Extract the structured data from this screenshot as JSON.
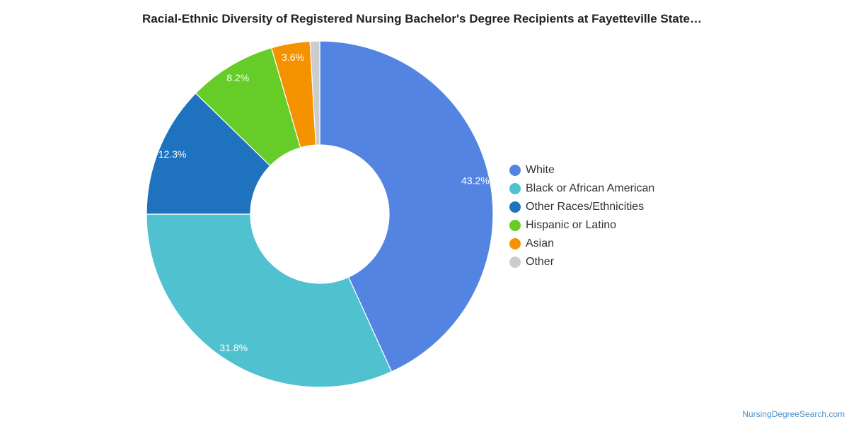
{
  "title": "Racial-Ethnic Diversity of Registered Nursing Bachelor's Degree Recipients at Fayetteville State…",
  "credit": "NursingDegreeSearch.com",
  "chart_data": {
    "type": "pie",
    "variant": "donut",
    "legend_position": "right",
    "series": [
      {
        "name": "White",
        "value": 43.2,
        "label": "43.2%",
        "color": "#5384e2"
      },
      {
        "name": "Black or African American",
        "value": 31.8,
        "label": "31.8%",
        "color": "#4fc1cf"
      },
      {
        "name": "Other Races/Ethnicities",
        "value": 12.3,
        "label": "12.3%",
        "color": "#1f72bd"
      },
      {
        "name": "Hispanic or Latino",
        "value": 8.2,
        "label": "8.2%",
        "color": "#66cc27"
      },
      {
        "name": "Asian",
        "value": 3.6,
        "label": "3.6%",
        "color": "#f59200"
      },
      {
        "name": "Other",
        "value": 0.9,
        "label": "",
        "color": "#cccccc"
      }
    ]
  }
}
